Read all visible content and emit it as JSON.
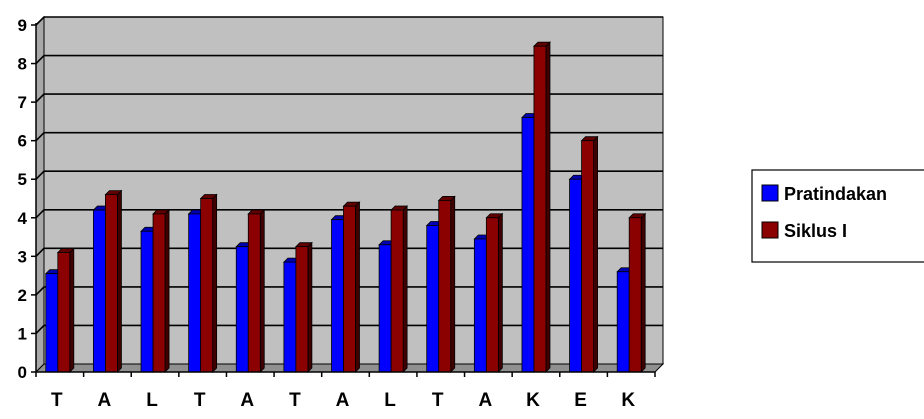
{
  "chart_data": {
    "type": "bar",
    "categories": [
      "T",
      "A",
      "L",
      "T",
      "A",
      "T",
      "A",
      "L",
      "T",
      "A",
      "K",
      "E",
      "K"
    ],
    "series": [
      {
        "name": "Pratindakan",
        "color": "#0000ff",
        "values": [
          2.55,
          4.2,
          3.65,
          4.1,
          3.25,
          2.85,
          3.95,
          3.3,
          3.8,
          3.45,
          6.6,
          5.0,
          2.6
        ]
      },
      {
        "name": "Siklus I",
        "color": "#8b0000",
        "values": [
          3.1,
          4.6,
          4.1,
          4.5,
          4.1,
          3.25,
          4.3,
          4.2,
          4.45,
          4.0,
          8.45,
          6.0,
          4.0
        ]
      }
    ],
    "yticks": [
      0,
      1,
      2,
      3,
      4,
      5,
      6,
      7,
      8,
      9
    ],
    "ylim": [
      0,
      9
    ],
    "grid": true,
    "legend_position": "right",
    "plot_background": "#c0c0c0"
  }
}
